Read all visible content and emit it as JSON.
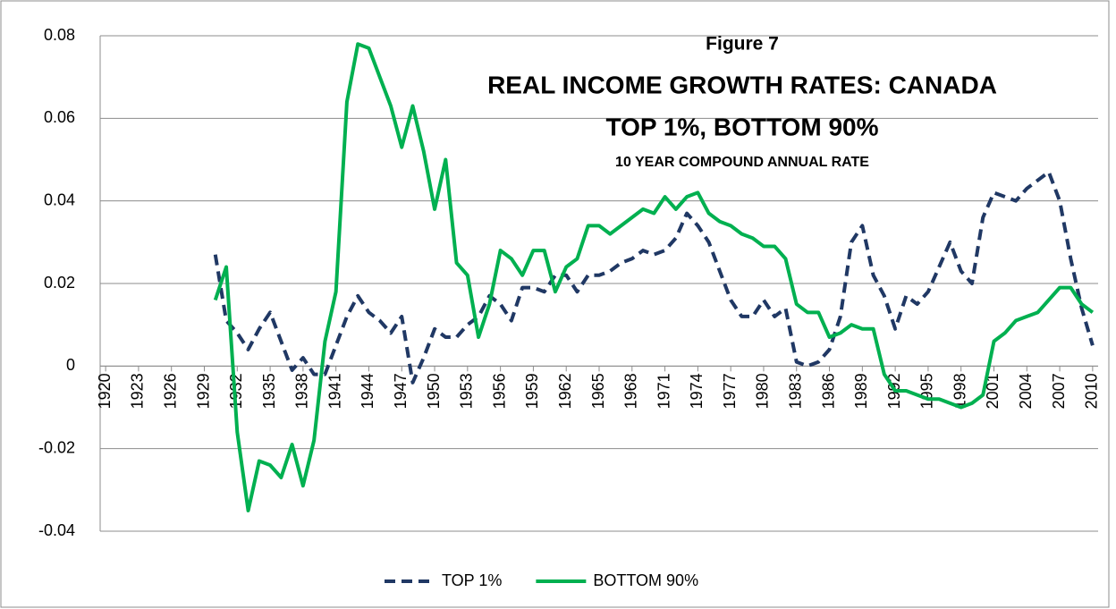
{
  "chart_data": {
    "type": "line",
    "title": "Figure 7",
    "subtitle": [
      "REAL INCOME GROWTH RATES: CANADA",
      "TOP 1%, BOTTOM 90%",
      "10 YEAR  COMPOUND  ANNUAL  RATE"
    ],
    "x": [
      1930,
      1931,
      1932,
      1933,
      1934,
      1935,
      1936,
      1937,
      1938,
      1939,
      1940,
      1941,
      1942,
      1943,
      1944,
      1945,
      1946,
      1947,
      1948,
      1949,
      1950,
      1951,
      1952,
      1953,
      1954,
      1955,
      1956,
      1957,
      1958,
      1959,
      1960,
      1961,
      1962,
      1963,
      1964,
      1965,
      1966,
      1967,
      1968,
      1969,
      1970,
      1971,
      1972,
      1973,
      1974,
      1975,
      1976,
      1977,
      1978,
      1979,
      1980,
      1981,
      1982,
      1983,
      1984,
      1985,
      1986,
      1987,
      1988,
      1989,
      1990,
      1991,
      1992,
      1993,
      1994,
      1995,
      1996,
      1997,
      1998,
      1999,
      2000,
      2001,
      2002,
      2003,
      2004,
      2005,
      2006,
      2007,
      2008,
      2009,
      2010
    ],
    "series": [
      {
        "name": "TOP 1%",
        "color": "#203864",
        "dash": true,
        "values": [
          0.027,
          0.011,
          0.008,
          0.004,
          0.009,
          0.013,
          0.006,
          -0.001,
          0.002,
          -0.002,
          -0.002,
          0.005,
          0.012,
          0.017,
          0.013,
          0.011,
          0.008,
          0.012,
          -0.004,
          0.002,
          0.009,
          0.007,
          0.007,
          0.01,
          0.012,
          0.017,
          0.015,
          0.011,
          0.019,
          0.019,
          0.018,
          0.022,
          0.022,
          0.018,
          0.022,
          0.022,
          0.023,
          0.025,
          0.026,
          0.028,
          0.027,
          0.028,
          0.031,
          0.037,
          0.034,
          0.03,
          0.023,
          0.016,
          0.012,
          0.012,
          0.016,
          0.012,
          0.014,
          0.001,
          0.0,
          0.001,
          0.004,
          0.012,
          0.03,
          0.034,
          0.022,
          0.017,
          0.009,
          0.017,
          0.015,
          0.018,
          0.024,
          0.03,
          0.023,
          0.02,
          0.036,
          0.042,
          0.041,
          0.04,
          0.043,
          0.045,
          0.047,
          0.04,
          0.026,
          0.014,
          0.005
        ]
      },
      {
        "name": "BOTTOM 90%",
        "color": "#00b050",
        "dash": false,
        "values": [
          0.016,
          0.024,
          -0.016,
          -0.035,
          -0.023,
          -0.024,
          -0.027,
          -0.019,
          -0.029,
          -0.018,
          0.006,
          0.018,
          0.064,
          0.078,
          0.077,
          0.07,
          0.063,
          0.053,
          0.063,
          0.052,
          0.038,
          0.05,
          0.025,
          0.022,
          0.007,
          0.015,
          0.028,
          0.026,
          0.022,
          0.028,
          0.028,
          0.018,
          0.024,
          0.026,
          0.034,
          0.034,
          0.032,
          0.034,
          0.036,
          0.038,
          0.037,
          0.041,
          0.038,
          0.041,
          0.042,
          0.037,
          0.035,
          0.034,
          0.032,
          0.031,
          0.029,
          0.029,
          0.026,
          0.015,
          0.013,
          0.013,
          0.007,
          0.008,
          0.01,
          0.009,
          0.009,
          -0.002,
          -0.006,
          -0.006,
          -0.007,
          -0.008,
          -0.008,
          -0.009,
          -0.01,
          -0.009,
          -0.007,
          0.006,
          0.008,
          0.011,
          0.012,
          0.013,
          0.016,
          0.019,
          0.019,
          0.015,
          0.013
        ]
      }
    ],
    "xlim": [
      1919.5,
      2010.5
    ],
    "xticks": [
      1920,
      1923,
      1926,
      1929,
      1932,
      1935,
      1938,
      1941,
      1944,
      1947,
      1950,
      1953,
      1956,
      1959,
      1962,
      1965,
      1968,
      1971,
      1974,
      1977,
      1980,
      1983,
      1986,
      1989,
      1992,
      1995,
      1998,
      2001,
      2004,
      2007,
      2010
    ],
    "ylim": [
      -0.04,
      0.08
    ],
    "yticks": [
      -0.04,
      -0.02,
      0,
      0.02,
      0.04,
      0.06,
      0.08
    ],
    "grid": true,
    "legend": "bottom"
  }
}
